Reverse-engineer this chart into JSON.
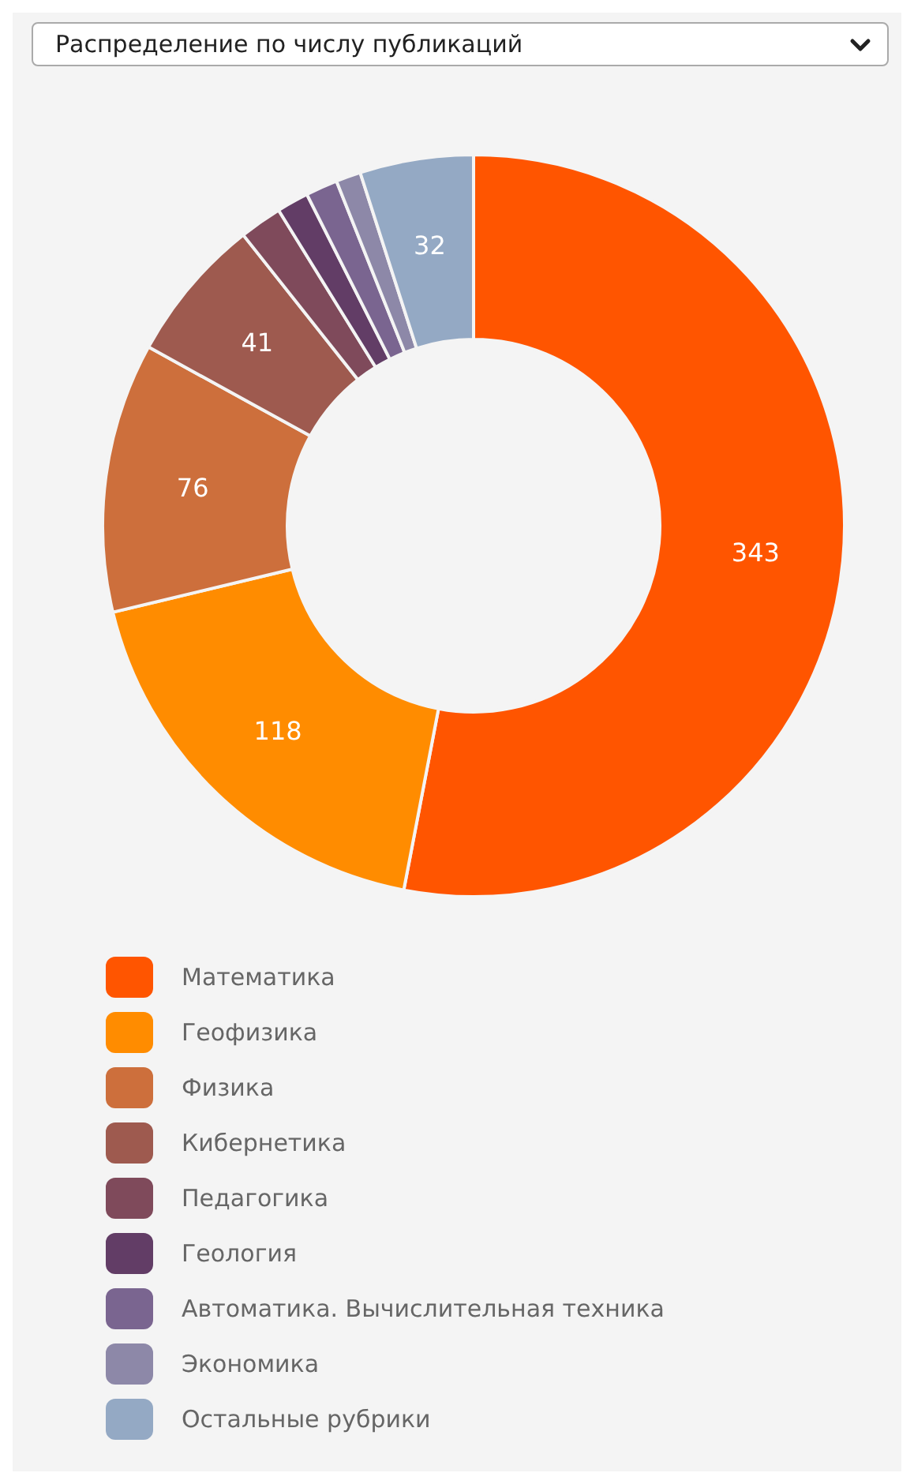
{
  "chart_data": {
    "type": "donut",
    "title": "Распределение по числу публикаций",
    "categories": [
      "Математика",
      "Геофизика",
      "Физика",
      "Кибернетика",
      "Педагогика",
      "Геология",
      "Автоматика. Вычислительная техника",
      "Экономика",
      "Остальные рубрики"
    ],
    "values": [
      343,
      118,
      76,
      41,
      12,
      9,
      9,
      7,
      32
    ],
    "value_labels": [
      "343",
      "118",
      "76",
      "41",
      null,
      null,
      null,
      null,
      "32"
    ],
    "colors": [
      "#ff5500",
      "#ff8c00",
      "#cd6f3c",
      "#9e5a4f",
      "#7f4a5b",
      "#623d66",
      "#7a6590",
      "#8d88a8",
      "#94a9c4"
    ],
    "legend": "bottom"
  }
}
